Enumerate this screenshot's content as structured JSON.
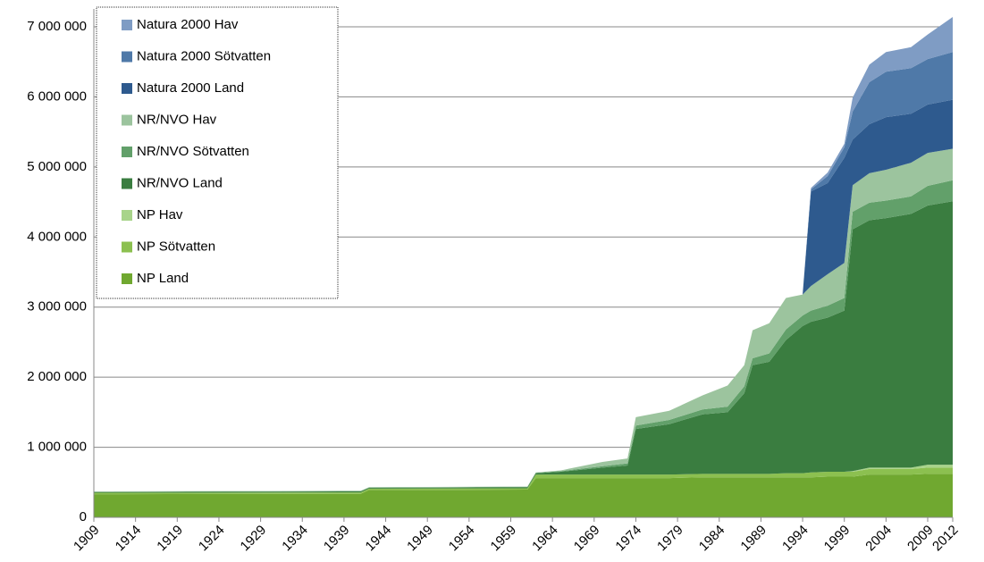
{
  "chart_data": {
    "type": "stacked-area",
    "x": [
      1909,
      1941,
      1942,
      1961,
      1962,
      1965,
      1970,
      1973,
      1974,
      1978,
      1982,
      1985,
      1987,
      1988,
      1990,
      1992,
      1994,
      1995,
      1997,
      1999,
      2000,
      2002,
      2004,
      2007,
      2009,
      2012
    ],
    "series": [
      {
        "name": "NP Land",
        "color": "#70a830",
        "values": [
          330000,
          335000,
          390000,
          395000,
          560000,
          560000,
          560000,
          560000,
          560000,
          560000,
          570000,
          570000,
          570000,
          570000,
          570000,
          570000,
          570000,
          570000,
          580000,
          580000,
          580000,
          610000,
          610000,
          610000,
          620000,
          620000
        ]
      },
      {
        "name": "NP Sötvatten",
        "color": "#8cc050",
        "values": [
          20000,
          20000,
          20000,
          20000,
          50000,
          50000,
          50000,
          50000,
          50000,
          50000,
          50000,
          50000,
          50000,
          50000,
          50000,
          60000,
          60000,
          70000,
          70000,
          70000,
          70000,
          80000,
          80000,
          80000,
          90000,
          90000
        ]
      },
      {
        "name": "NP Hav",
        "color": "#a8d48a",
        "values": [
          0,
          0,
          0,
          0,
          0,
          0,
          0,
          0,
          0,
          0,
          0,
          0,
          0,
          0,
          0,
          0,
          0,
          0,
          0,
          0,
          10000,
          20000,
          20000,
          20000,
          40000,
          40000
        ]
      },
      {
        "name": "NR/NVO Land",
        "color": "#3a7d40",
        "values": [
          10000,
          15000,
          10000,
          15000,
          20000,
          40000,
          100000,
          130000,
          650000,
          720000,
          850000,
          880000,
          1150000,
          1550000,
          1600000,
          1900000,
          2100000,
          2150000,
          2200000,
          2300000,
          3450000,
          3530000,
          3560000,
          3620000,
          3700000,
          3760000
        ]
      },
      {
        "name": "NR/NVO Sötvatten",
        "color": "#62a06a",
        "values": [
          5000,
          5000,
          5000,
          5000,
          5000,
          10000,
          20000,
          30000,
          50000,
          60000,
          70000,
          80000,
          100000,
          100000,
          120000,
          150000,
          150000,
          160000,
          170000,
          180000,
          250000,
          250000,
          250000,
          250000,
          280000,
          300000
        ]
      },
      {
        "name": "NR/NVO Hav",
        "color": "#9cc49e",
        "values": [
          5000,
          5000,
          5000,
          5000,
          5000,
          10000,
          60000,
          70000,
          120000,
          130000,
          200000,
          300000,
          300000,
          400000,
          430000,
          450000,
          300000,
          350000,
          450000,
          500000,
          380000,
          420000,
          440000,
          480000,
          470000,
          450000
        ]
      },
      {
        "name": "Natura 2000 Land",
        "color": "#2e5a8e",
        "values": [
          0,
          0,
          0,
          0,
          0,
          0,
          0,
          0,
          0,
          0,
          0,
          0,
          0,
          0,
          0,
          0,
          0,
          1350000,
          1300000,
          1500000,
          650000,
          700000,
          750000,
          700000,
          690000,
          700000
        ]
      },
      {
        "name": "Natura 2000 Sötvatten",
        "color": "#4f79a8",
        "values": [
          0,
          0,
          0,
          0,
          0,
          0,
          0,
          0,
          0,
          0,
          0,
          0,
          0,
          0,
          0,
          0,
          0,
          30000,
          100000,
          150000,
          400000,
          600000,
          650000,
          650000,
          650000,
          680000
        ]
      },
      {
        "name": "Natura 2000 Hav",
        "color": "#7f9cc4",
        "values": [
          0,
          0,
          0,
          0,
          0,
          0,
          0,
          0,
          0,
          0,
          0,
          0,
          0,
          0,
          0,
          0,
          0,
          20000,
          50000,
          50000,
          200000,
          250000,
          280000,
          300000,
          350000,
          500000
        ]
      }
    ],
    "xlim": [
      1909,
      2012
    ],
    "xticks": [
      1909,
      1914,
      1919,
      1924,
      1929,
      1934,
      1939,
      1944,
      1949,
      1954,
      1959,
      1964,
      1969,
      1974,
      1979,
      1984,
      1989,
      1994,
      1999,
      2004,
      2009,
      2012
    ],
    "ylim": [
      0,
      7000000
    ],
    "yticks": [
      0,
      {
        "value": 1000000,
        "label": "1 000 000"
      },
      {
        "value": 2000000,
        "label": "2 000 000"
      },
      {
        "value": 3000000,
        "label": "3 000 000"
      },
      {
        "value": 4000000,
        "label": "4 000 000"
      },
      {
        "value": 5000000,
        "label": "5 000 000"
      },
      {
        "value": 6000000,
        "label": "6 000 000"
      },
      {
        "value": 7000000,
        "label": "7 000 000"
      }
    ],
    "grid": true,
    "legend": "upper-left"
  }
}
